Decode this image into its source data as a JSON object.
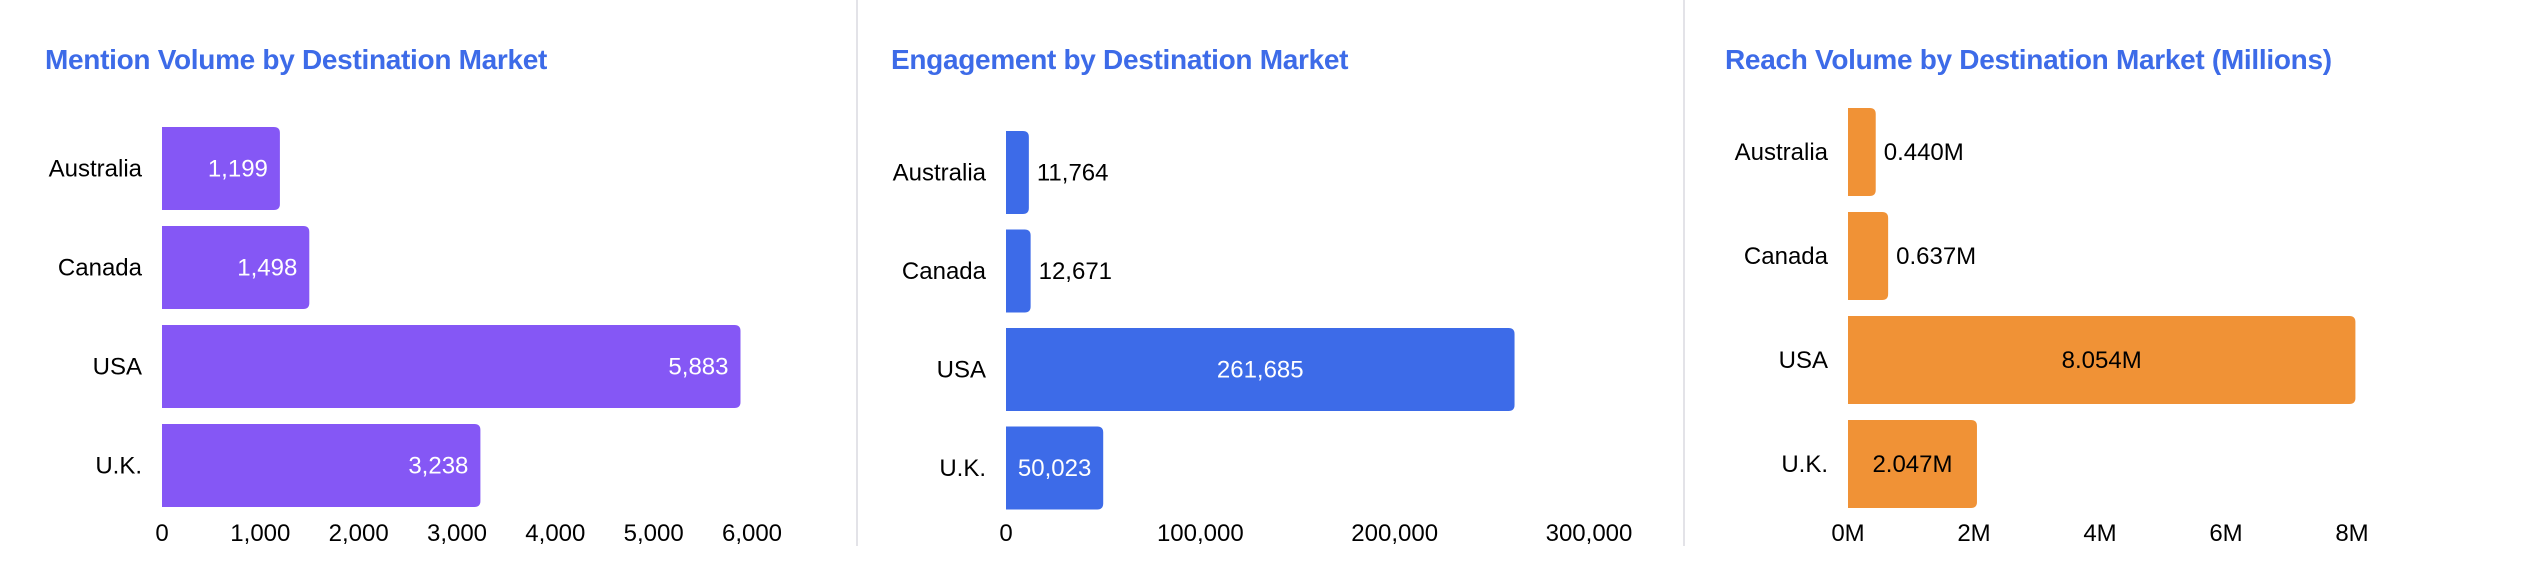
{
  "chart_data": [
    {
      "type": "bar",
      "orientation": "horizontal",
      "title": "Mention Volume by Destination Market",
      "categories": [
        "Australia",
        "Canada",
        "USA",
        "U.K."
      ],
      "values": [
        1199,
        1498,
        5883,
        3238
      ],
      "value_labels": [
        "1,199",
        "1,498",
        "5,883",
        "3,238"
      ],
      "xlim": [
        0,
        6000
      ],
      "x_ticks": [
        0,
        1000,
        2000,
        3000,
        4000,
        5000,
        6000
      ],
      "x_tick_labels": [
        "0",
        "1,000",
        "2,000",
        "3,000",
        "4,000",
        "5,000",
        "6,000"
      ],
      "color": "#8557f5",
      "label_color": "#ffffff",
      "label_position": "inside-end",
      "grid": false
    },
    {
      "type": "bar",
      "orientation": "horizontal",
      "title": "Engagement by Destination Market",
      "categories": [
        "Australia",
        "Canada",
        "USA",
        "U.K."
      ],
      "values": [
        11764,
        12671,
        261685,
        50023
      ],
      "value_labels": [
        "11,764",
        "12,671",
        "261,685",
        "50,023"
      ],
      "xlim": [
        0,
        300000
      ],
      "x_ticks": [
        0,
        100000,
        200000,
        300000
      ],
      "x_tick_labels": [
        "0",
        "100,000",
        "200,000",
        "300,000"
      ],
      "color": "#3d6be8",
      "label_color": "#ffffff",
      "label_position": "auto",
      "grid": false
    },
    {
      "type": "bar",
      "orientation": "horizontal",
      "title": "Reach Volume by Destination Market (Millions)",
      "categories": [
        "Australia",
        "Canada",
        "USA",
        "U.K."
      ],
      "values": [
        0.44,
        0.637,
        8.054,
        2.047
      ],
      "value_labels": [
        "0.440M",
        "0.637M",
        "8.054M",
        "2.047M"
      ],
      "xlim": [
        0,
        8
      ],
      "x_ticks": [
        0,
        2,
        4,
        6,
        8
      ],
      "x_tick_labels": [
        "0M",
        "2M",
        "4M",
        "6M",
        "8M"
      ],
      "color": "#f09236",
      "label_color": "#000000",
      "label_position": "auto",
      "grid": false
    }
  ]
}
